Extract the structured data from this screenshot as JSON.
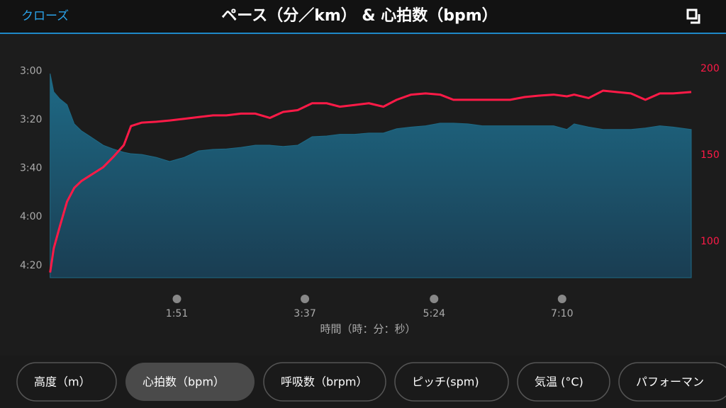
{
  "header": {
    "close": "クローズ"
  },
  "chart_data": {
    "type": "area",
    "title": "ペース（分／km） & 心拍数（bpm）",
    "x": [
      6,
      9,
      14,
      20,
      26,
      32,
      41,
      50,
      58,
      67,
      73,
      82,
      94,
      105,
      117,
      129,
      141,
      152,
      164,
      176,
      188,
      199,
      211,
      223,
      235,
      246,
      258,
      270,
      282,
      293,
      305,
      317,
      329,
      340,
      352,
      364,
      376,
      387,
      399,
      411,
      423,
      434,
      440,
      452,
      464,
      475,
      487,
      499,
      511,
      522,
      537
    ],
    "series": [
      {
        "type": "area",
        "axis": "y",
        "color": "#1e6a86",
        "values": [
          181,
          188.5,
          191.4,
          193.8,
          201.7,
          204.6,
          207.5,
          210.5,
          212,
          213.4,
          214,
          214.3,
          215.5,
          217.2,
          215.5,
          212.8,
          212.2,
          212,
          211.4,
          210.5,
          210.5,
          211,
          210.5,
          207,
          206.7,
          206,
          206,
          205.5,
          205.5,
          203.7,
          203,
          202.5,
          201.4,
          201.4,
          201.7,
          202.5,
          202.5,
          202.5,
          202.5,
          202.5,
          202.5,
          204,
          201.7,
          203,
          204,
          204,
          204,
          203.4,
          202.5,
          203,
          204
        ]
      },
      {
        "type": "line",
        "axis": "y2",
        "color": "#ff1a47",
        "values": [
          82,
          96,
          108.6,
          123,
          131,
          135,
          139,
          143,
          148.7,
          155.7,
          166.8,
          168.8,
          169.3,
          170,
          171,
          172,
          173,
          173,
          174,
          174,
          171.5,
          175,
          176,
          180,
          180,
          178,
          179,
          180,
          178,
          182,
          185,
          185.7,
          185,
          182,
          182,
          182,
          182,
          182,
          183.6,
          184.4,
          185,
          184,
          185,
          183,
          187.3,
          186.5,
          185.7,
          182,
          185.7,
          185.7,
          186.5
        ]
      }
    ],
    "xlim": [
      5,
      537
    ],
    "xticks": [
      {
        "value": 111,
        "label": "1:51"
      },
      {
        "value": 217,
        "label": "3:37"
      },
      {
        "value": 324,
        "label": "5:24"
      },
      {
        "value": 430,
        "label": "7:10"
      }
    ],
    "xlabel": "時間（時：分：秒）",
    "ylim": [
      265,
      179
    ],
    "yticks": [
      {
        "value": 180,
        "label": "3:00"
      },
      {
        "value": 200,
        "label": "3:20"
      },
      {
        "value": 220,
        "label": "3:40"
      },
      {
        "value": 240,
        "label": "4:00"
      },
      {
        "value": 260,
        "label": "4:20"
      }
    ],
    "y2lim": [
      79,
      200
    ],
    "y2ticks": [
      100,
      150,
      200
    ],
    "y2color": "#ff1a47"
  },
  "tabs": [
    "高度（m）",
    "心拍数（bpm）",
    "呼吸数（brpm）",
    "ピッチ(spm)",
    "気温 (°C)",
    "パフォーマン"
  ],
  "selected_tab": 1
}
